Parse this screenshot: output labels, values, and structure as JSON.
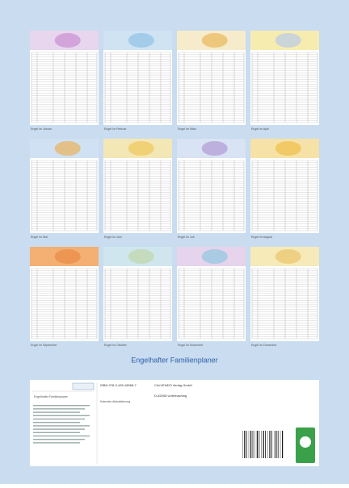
{
  "title": "Engelhafter Familienplaner",
  "months": [
    {
      "caption": "Engel im Januar"
    },
    {
      "caption": "Engel im Februar"
    },
    {
      "caption": "Engel im März"
    },
    {
      "caption": "Engel im April"
    },
    {
      "caption": "Engel im Mai"
    },
    {
      "caption": "Engel im Juni"
    },
    {
      "caption": "Engel im Juli"
    },
    {
      "caption": "Engel im August"
    },
    {
      "caption": "Engel im September"
    },
    {
      "caption": "Engel im Oktober"
    },
    {
      "caption": "Engel im November"
    },
    {
      "caption": "Engel im Dezember"
    }
  ],
  "info": {
    "subtitle": "Engelhafter Familienplaner",
    "isbn": "ISBN 978-3-435-18565-7",
    "publisher": "CALVENDO Verlag GmbH",
    "city": "D-82008 Unterhaching",
    "note": "Kalender-Aktualisierung"
  }
}
